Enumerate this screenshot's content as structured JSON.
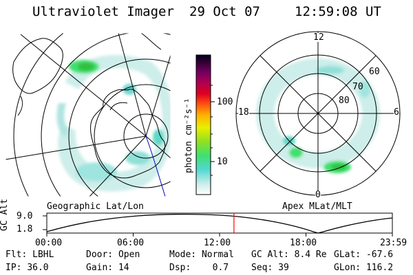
{
  "header": {
    "instrument": "Ultraviolet Imager",
    "date": "29 Oct 07",
    "time": "12:59:08 UT"
  },
  "colorbar": {
    "unit_label": "photon cm⁻²s⁻¹",
    "ticks": [
      "100",
      "10"
    ]
  },
  "left_panel": {
    "label": "Geographic Lat/Lon"
  },
  "right_panel": {
    "label": "Apex MLat/MLT",
    "mlt_labels": {
      "top": "12",
      "left": "18",
      "right": "6",
      "bottom": "0"
    },
    "mlat_labels": [
      "60",
      "70",
      "80"
    ]
  },
  "timeline": {
    "ylabel": "GC Alt",
    "yticks": [
      "9.0",
      "1.8"
    ],
    "xticks": [
      "00:00",
      "06:00",
      "12:00",
      "18:00",
      "23:59"
    ],
    "marker_time_hours": 13.0,
    "marker_color": "#ff0000"
  },
  "info": {
    "row1": [
      {
        "label": "Flt:",
        "value": "LBHL"
      },
      {
        "label": "Door:",
        "value": "Open"
      },
      {
        "label": "Mode:",
        "value": "Normal"
      },
      {
        "label": "GC Alt:",
        "value": "8.4 Re"
      },
      {
        "label": "GLat:",
        "value": "-67.6"
      }
    ],
    "row2": [
      {
        "label": "IP:",
        "value": "36.0"
      },
      {
        "label": "Gain:",
        "value": "14"
      },
      {
        "label": "Dsp:",
        "value": "0.7"
      },
      {
        "label": "Seq:",
        "value": "39"
      },
      {
        "label": "GLon:",
        "value": "116.2"
      }
    ]
  },
  "colors": {
    "aurora_low": "#c8ece8",
    "aurora_mid": "#40d8d0",
    "aurora_high": "#30c040"
  }
}
